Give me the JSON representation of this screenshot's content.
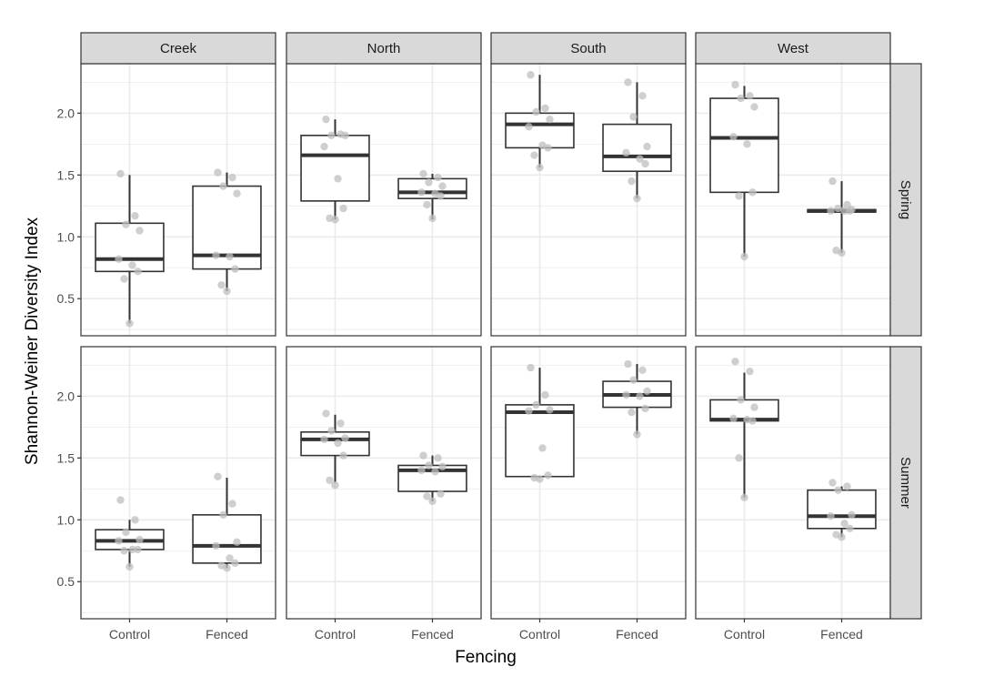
{
  "chart_data": {
    "type": "boxplot",
    "facet_cols": [
      "Creek",
      "North",
      "South",
      "West"
    ],
    "facet_rows": [
      "Spring",
      "Summer"
    ],
    "categories": [
      "Control",
      "Fenced"
    ],
    "xlabel": "Fencing",
    "ylabel": "Shannon-Weiner Diversity Index",
    "yticks": [
      0.5,
      1.0,
      1.5,
      2.0
    ],
    "ytick_labels": [
      "0.5",
      "1.0",
      "1.5",
      "2.0"
    ],
    "ylim_by_row": {
      "Spring": [
        0.2,
        2.4
      ],
      "Summer": [
        0.2,
        2.4
      ]
    },
    "grid": true,
    "colors": {
      "box_line": "#333333",
      "point": "#bfbfbf",
      "strip_bg": "#d9d9d9",
      "grid": "#ebebeb",
      "panel_border": "#333333"
    },
    "panels": [
      {
        "col": "Creek",
        "row": "Spring",
        "boxes": [
          {
            "group": "Control",
            "min": 0.3,
            "q1": 0.72,
            "median": 0.82,
            "q3": 1.11,
            "max": 1.5,
            "points": [
              1.51,
              1.17,
              1.1,
              1.05,
              0.82,
              0.77,
              0.72,
              0.66,
              0.3
            ]
          },
          {
            "group": "Fenced",
            "min": 0.56,
            "q1": 0.74,
            "median": 0.85,
            "q3": 1.41,
            "max": 1.52,
            "points": [
              1.52,
              1.48,
              1.41,
              1.35,
              0.85,
              0.84,
              0.74,
              0.61,
              0.56
            ]
          }
        ]
      },
      {
        "col": "North",
        "row": "Spring",
        "boxes": [
          {
            "group": "Control",
            "min": 1.14,
            "q1": 1.29,
            "median": 1.66,
            "q3": 1.82,
            "max": 1.95,
            "points": [
              1.95,
              1.83,
              1.82,
              1.82,
              1.73,
              1.47,
              1.23,
              1.15,
              1.14
            ]
          },
          {
            "group": "Fenced",
            "min": 1.14,
            "q1": 1.31,
            "median": 1.36,
            "q3": 1.47,
            "max": 1.51,
            "points": [
              1.51,
              1.48,
              1.44,
              1.41,
              1.36,
              1.35,
              1.33,
              1.26,
              1.15
            ]
          }
        ]
      },
      {
        "col": "South",
        "row": "Spring",
        "boxes": [
          {
            "group": "Control",
            "min": 1.56,
            "q1": 1.72,
            "median": 1.91,
            "q3": 2.0,
            "max": 2.31,
            "points": [
              2.31,
              2.04,
              2.01,
              1.95,
              1.89,
              1.74,
              1.72,
              1.66,
              1.56
            ]
          },
          {
            "group": "Fenced",
            "min": 1.31,
            "q1": 1.53,
            "median": 1.65,
            "q3": 1.91,
            "max": 2.25,
            "points": [
              2.25,
              2.14,
              1.97,
              1.73,
              1.68,
              1.63,
              1.59,
              1.45,
              1.31
            ]
          }
        ]
      },
      {
        "col": "West",
        "row": "Spring",
        "boxes": [
          {
            "group": "Control",
            "min": 0.84,
            "q1": 1.36,
            "median": 1.8,
            "q3": 2.12,
            "max": 2.22,
            "points": [
              2.23,
              2.14,
              2.12,
              2.05,
              1.81,
              1.75,
              1.36,
              1.33,
              0.84
            ]
          },
          {
            "group": "Fenced",
            "min": 0.87,
            "q1": 1.2,
            "median": 1.21,
            "q3": 1.22,
            "max": 1.45,
            "points": [
              1.45,
              1.26,
              1.23,
              1.22,
              1.21,
              1.21,
              1.21,
              0.89,
              0.87
            ]
          }
        ]
      },
      {
        "col": "Creek",
        "row": "Summer",
        "boxes": [
          {
            "group": "Control",
            "min": 0.62,
            "q1": 0.76,
            "median": 0.83,
            "q3": 0.92,
            "max": 1.0,
            "points": [
              1.16,
              1.0,
              0.9,
              0.84,
              0.83,
              0.76,
              0.76,
              0.75,
              0.62
            ]
          },
          {
            "group": "Fenced",
            "min": 0.61,
            "q1": 0.65,
            "median": 0.79,
            "q3": 1.04,
            "max": 1.34,
            "points": [
              1.35,
              1.13,
              1.04,
              0.82,
              0.79,
              0.69,
              0.65,
              0.63,
              0.61
            ]
          }
        ]
      },
      {
        "col": "North",
        "row": "Summer",
        "boxes": [
          {
            "group": "Control",
            "min": 1.3,
            "q1": 1.52,
            "median": 1.65,
            "q3": 1.71,
            "max": 1.85,
            "points": [
              1.86,
              1.78,
              1.72,
              1.66,
              1.65,
              1.62,
              1.52,
              1.32,
              1.28
            ]
          },
          {
            "group": "Fenced",
            "min": 1.15,
            "q1": 1.23,
            "median": 1.4,
            "q3": 1.44,
            "max": 1.52,
            "points": [
              1.52,
              1.5,
              1.44,
              1.43,
              1.4,
              1.39,
              1.21,
              1.19,
              1.15
            ]
          }
        ]
      },
      {
        "col": "South",
        "row": "Summer",
        "boxes": [
          {
            "group": "Control",
            "min": 1.34,
            "q1": 1.35,
            "median": 1.87,
            "q3": 1.93,
            "max": 2.23,
            "points": [
              2.23,
              2.01,
              1.93,
              1.89,
              1.88,
              1.58,
              1.36,
              1.34,
              1.33
            ]
          },
          {
            "group": "Fenced",
            "min": 1.69,
            "q1": 1.91,
            "median": 2.01,
            "q3": 2.12,
            "max": 2.26,
            "points": [
              2.26,
              2.21,
              2.13,
              2.04,
              2.01,
              2.0,
              1.9,
              1.87,
              1.69
            ]
          }
        ]
      },
      {
        "col": "West",
        "row": "Summer",
        "boxes": [
          {
            "group": "Control",
            "min": 1.18,
            "q1": 1.8,
            "median": 1.81,
            "q3": 1.97,
            "max": 2.19,
            "points": [
              2.28,
              2.2,
              1.97,
              1.91,
              1.82,
              1.81,
              1.8,
              1.5,
              1.18
            ]
          },
          {
            "group": "Fenced",
            "min": 0.86,
            "q1": 0.93,
            "median": 1.03,
            "q3": 1.24,
            "max": 1.27,
            "points": [
              1.3,
              1.27,
              1.24,
              1.04,
              1.03,
              0.97,
              0.93,
              0.88,
              0.86
            ]
          }
        ]
      }
    ]
  }
}
